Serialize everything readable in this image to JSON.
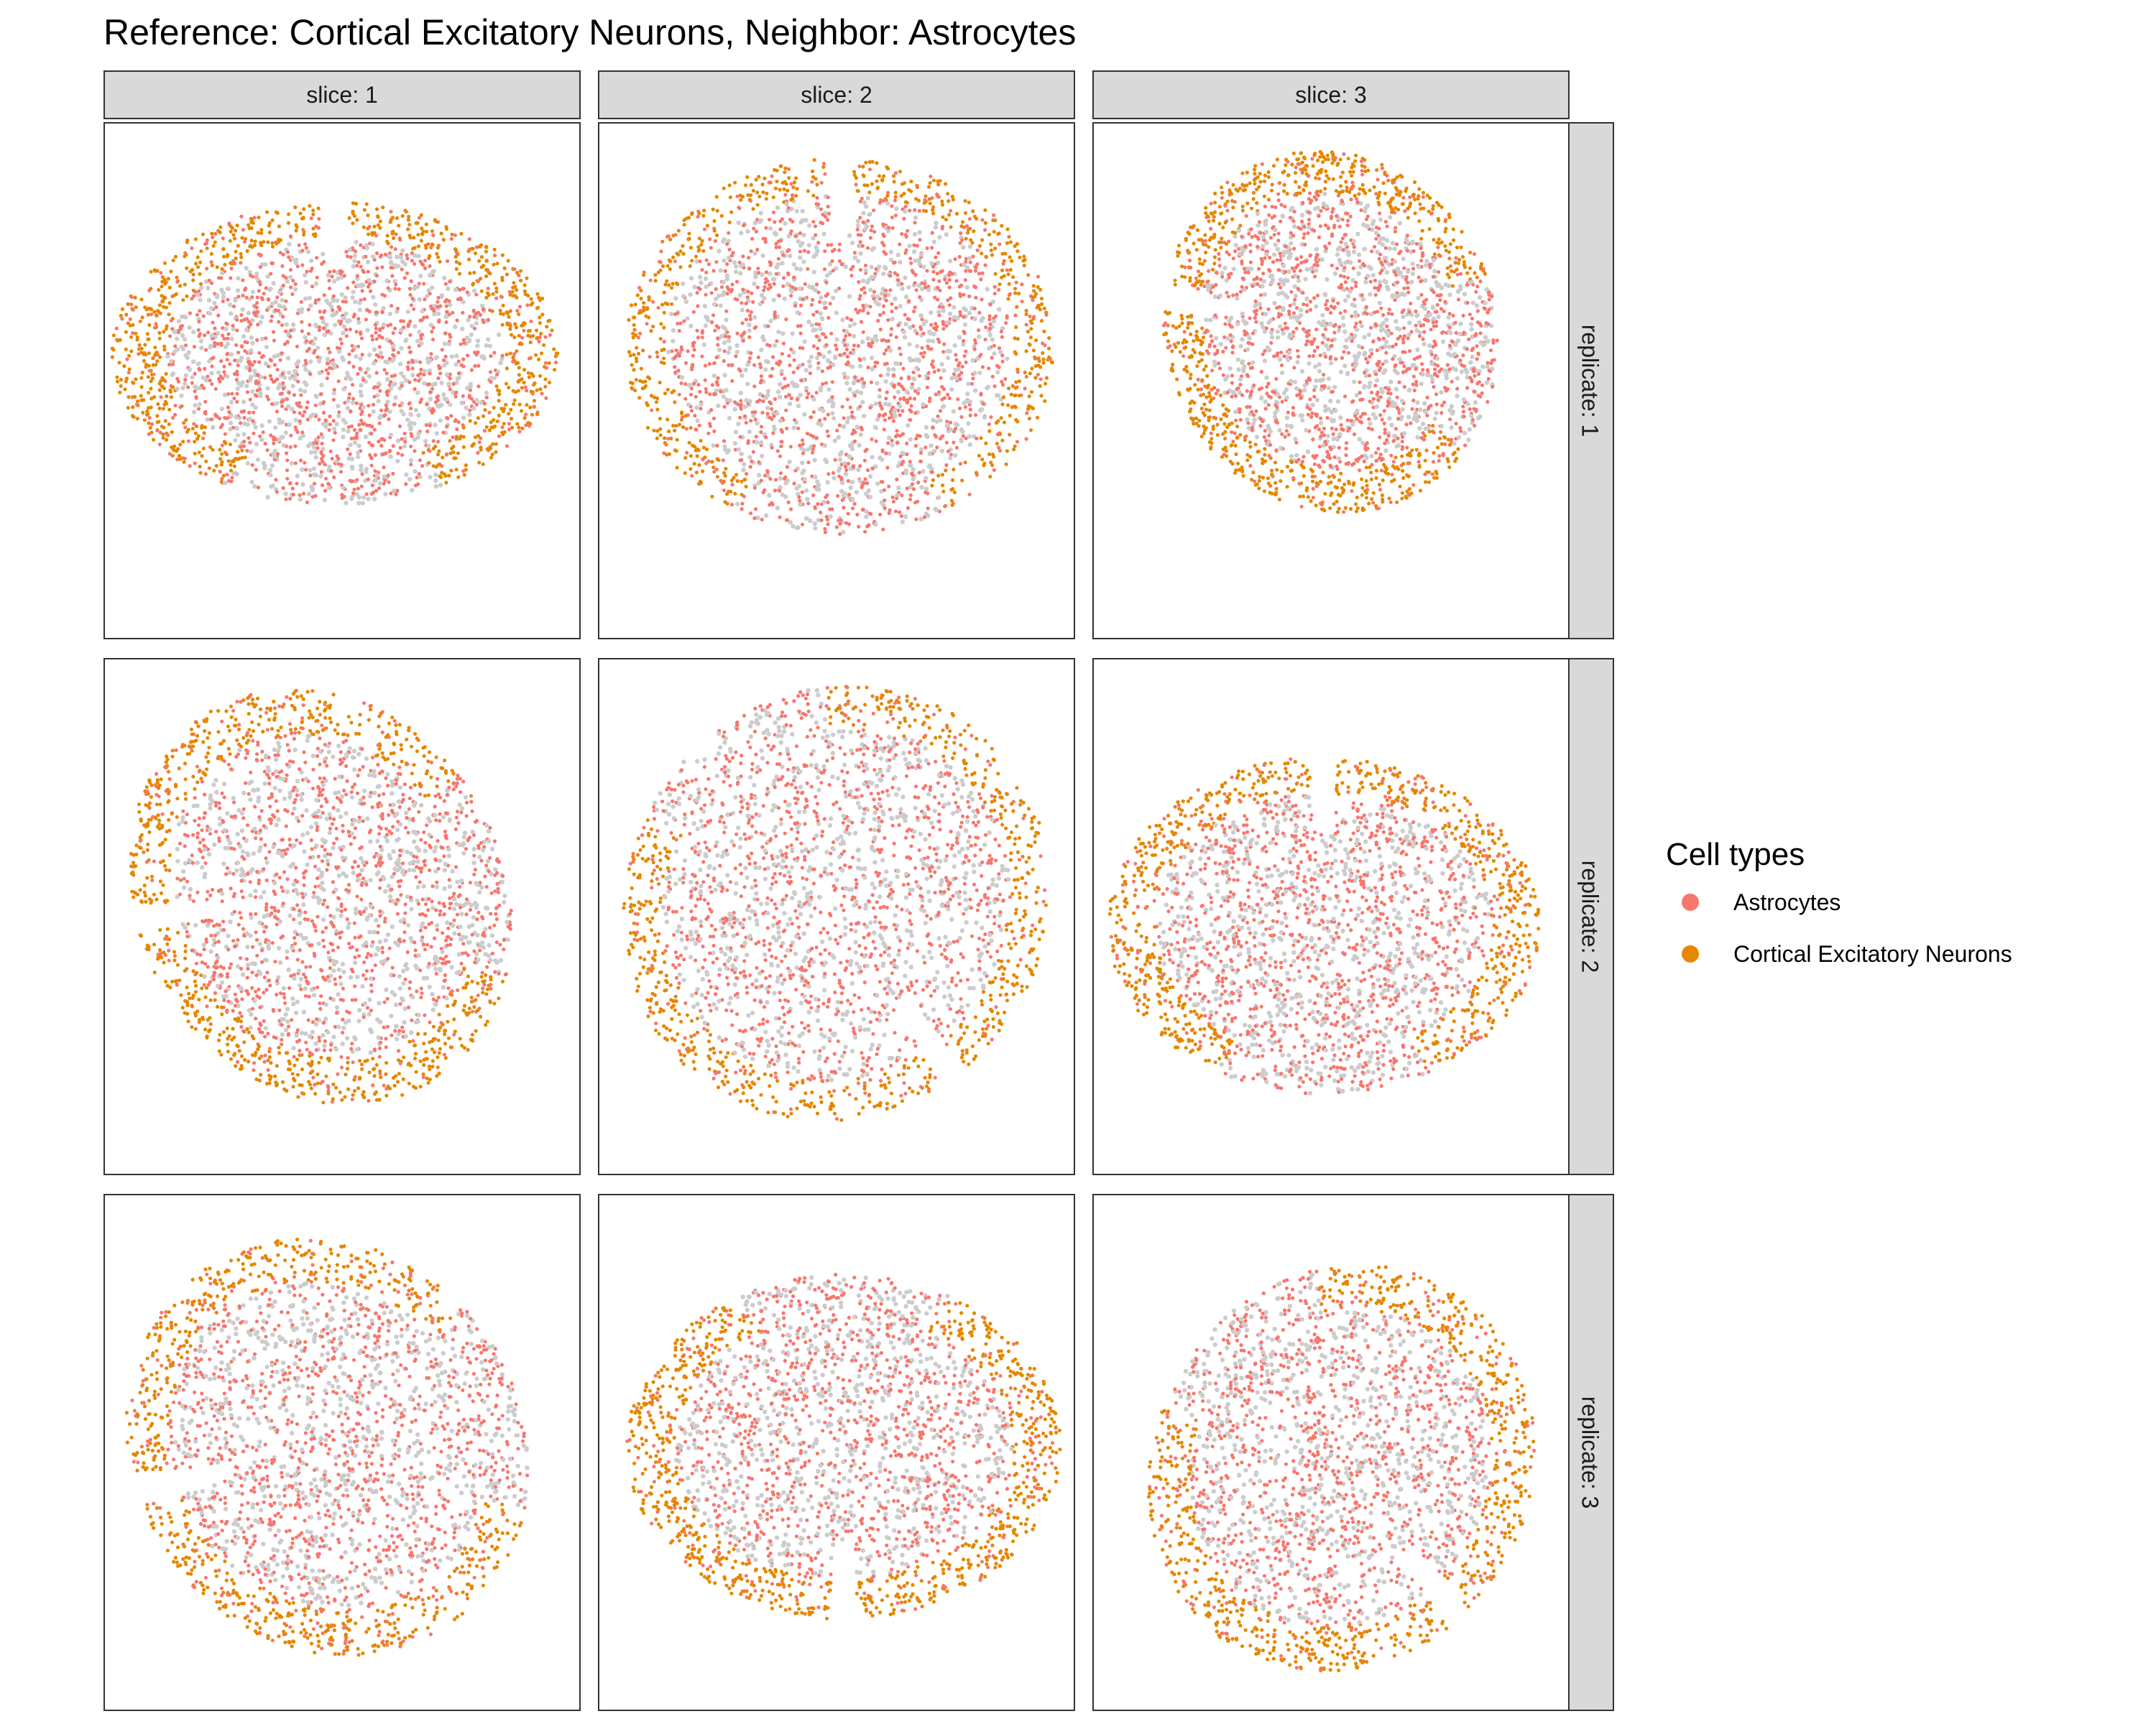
{
  "title": "Reference: Cortical Excitatory Neurons, Neighbor: Astrocytes",
  "chart_data": {
    "type": "scatter",
    "title": "Reference: Cortical Excitatory Neurons, Neighbor: Astrocytes",
    "xlabel": "",
    "ylabel": "",
    "axes_visible": false,
    "grid": false,
    "facet_columns": [
      "slice: 1",
      "slice: 2",
      "slice: 3"
    ],
    "facet_rows": [
      "replicate: 1",
      "replicate: 2",
      "replicate: 3"
    ],
    "legend": {
      "title": "Cell types",
      "position": "right",
      "entries": [
        {
          "label": "Astrocytes",
          "color": "#f8766d"
        },
        {
          "label": "Cortical Excitatory Neurons",
          "color": "#e58700"
        }
      ]
    },
    "background_cell_color": "#cccccc",
    "series": [
      {
        "name": "Astrocytes",
        "color": "#f8766d"
      },
      {
        "name": "Cortical Excitatory Neurons",
        "color": "#e58700"
      }
    ]
  }
}
